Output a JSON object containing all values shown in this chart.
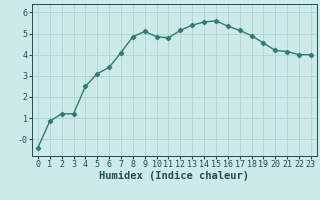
{
  "x": [
    0,
    1,
    2,
    3,
    4,
    5,
    6,
    7,
    8,
    9,
    10,
    11,
    12,
    13,
    14,
    15,
    16,
    17,
    18,
    19,
    20,
    21,
    22,
    23
  ],
  "y": [
    -0.4,
    0.85,
    1.2,
    1.2,
    2.5,
    3.1,
    3.4,
    4.1,
    4.85,
    5.1,
    4.85,
    4.8,
    5.15,
    5.4,
    5.55,
    5.6,
    5.35,
    5.15,
    4.9,
    4.55,
    4.2,
    4.15,
    4.0,
    4.0
  ],
  "line_color": "#2e7d6e",
  "marker": "D",
  "markersize": 2.2,
  "linewidth": 1.0,
  "xlabel": "Humidex (Indice chaleur)",
  "xlim": [
    -0.5,
    23.5
  ],
  "ylim": [
    -0.8,
    6.4
  ],
  "yticks": [
    0,
    1,
    2,
    3,
    4,
    5,
    6
  ],
  "xticks": [
    0,
    1,
    2,
    3,
    4,
    5,
    6,
    7,
    8,
    9,
    10,
    11,
    12,
    13,
    14,
    15,
    16,
    17,
    18,
    19,
    20,
    21,
    22,
    23
  ],
  "bg_color": "#cdeaea",
  "grid_color": "#afd4d4",
  "tick_color": "#1e5050",
  "xlabel_fontsize": 7.5,
  "tick_fontsize": 6.0,
  "ytick_labels": [
    "-0",
    "1",
    "2",
    "3",
    "4",
    "5",
    "6"
  ]
}
